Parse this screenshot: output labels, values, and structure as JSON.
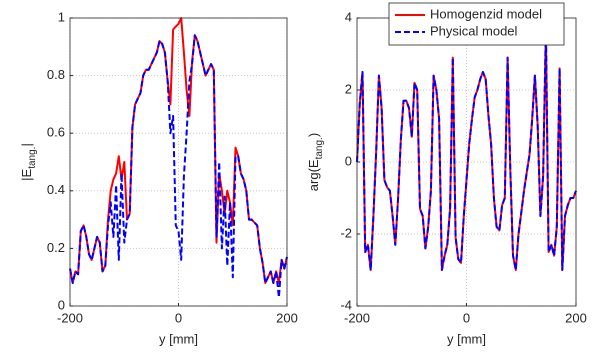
{
  "chart_data": [
    {
      "type": "line",
      "xlabel": "y [mm]",
      "ylabel_parts": [
        "|E",
        "tang.",
        "|"
      ],
      "x": [
        -200,
        -195,
        -190,
        -185,
        -180,
        -175,
        -170,
        -165,
        -160,
        -155,
        -150,
        -145,
        -140,
        -135,
        -130,
        -125,
        -120,
        -115,
        -110,
        -105,
        -100,
        -95,
        -90,
        -85,
        -80,
        -75,
        -70,
        -65,
        -60,
        -55,
        -50,
        -45,
        -40,
        -35,
        -30,
        -25,
        -20,
        -15,
        -10,
        -5,
        0,
        5,
        10,
        15,
        20,
        25,
        30,
        35,
        40,
        45,
        50,
        55,
        60,
        65,
        70,
        75,
        80,
        85,
        90,
        95,
        100,
        105,
        110,
        115,
        120,
        125,
        130,
        135,
        140,
        145,
        150,
        155,
        160,
        165,
        170,
        175,
        180,
        185,
        190,
        195,
        200
      ],
      "series": [
        {
          "color": "#ff0000",
          "linestyle": "solid",
          "values": [
            0.13,
            0.08,
            0.12,
            0.11,
            0.26,
            0.28,
            0.24,
            0.18,
            0.16,
            0.2,
            0.24,
            0.22,
            0.12,
            0.14,
            0.3,
            0.4,
            0.44,
            0.46,
            0.52,
            0.44,
            0.5,
            0.3,
            0.32,
            0.62,
            0.7,
            0.72,
            0.74,
            0.8,
            0.82,
            0.82,
            0.84,
            0.86,
            0.88,
            0.92,
            0.91,
            0.88,
            0.78,
            0.7,
            0.96,
            0.97,
            0.98,
            1.0,
            0.88,
            0.75,
            0.66,
            0.85,
            0.94,
            0.92,
            0.88,
            0.84,
            0.8,
            0.82,
            0.84,
            0.82,
            0.22,
            0.46,
            0.4,
            0.32,
            0.4,
            0.36,
            0.28,
            0.55,
            0.52,
            0.46,
            0.44,
            0.4,
            0.3,
            0.3,
            0.29,
            0.28,
            0.2,
            0.15,
            0.08,
            0.1,
            0.12,
            0.08,
            0.12,
            0.08,
            0.16,
            0.13,
            0.17
          ]
        },
        {
          "color": "#0000ff",
          "linestyle": "dashed",
          "values": [
            0.13,
            0.08,
            0.12,
            0.11,
            0.26,
            0.28,
            0.24,
            0.18,
            0.16,
            0.2,
            0.24,
            0.22,
            0.12,
            0.14,
            0.28,
            0.36,
            0.24,
            0.42,
            0.16,
            0.46,
            0.22,
            0.3,
            0.32,
            0.62,
            0.7,
            0.72,
            0.74,
            0.8,
            0.82,
            0.82,
            0.84,
            0.86,
            0.88,
            0.92,
            0.91,
            0.88,
            0.78,
            0.6,
            0.66,
            0.28,
            0.26,
            0.16,
            0.45,
            0.6,
            0.78,
            0.84,
            0.94,
            0.92,
            0.88,
            0.84,
            0.8,
            0.82,
            0.84,
            0.82,
            0.24,
            0.5,
            0.2,
            0.38,
            0.14,
            0.36,
            0.1,
            0.52,
            0.52,
            0.46,
            0.44,
            0.4,
            0.3,
            0.3,
            0.29,
            0.28,
            0.2,
            0.15,
            0.08,
            0.1,
            0.12,
            0.08,
            0.12,
            0.03,
            0.16,
            0.13,
            0.17
          ]
        }
      ],
      "xlim": [
        -200,
        200
      ],
      "xticks": [
        -200,
        0,
        200
      ],
      "ylim": [
        0,
        1
      ],
      "yticks": [
        0,
        0.2,
        0.4,
        0.6,
        0.8,
        1
      ],
      "grid": true
    },
    {
      "type": "line",
      "xlabel": "y [mm]",
      "ylabel_parts": [
        "arg(E",
        "tang.",
        ")"
      ],
      "x": [
        -200,
        -195,
        -190,
        -185,
        -180,
        -175,
        -170,
        -165,
        -160,
        -155,
        -150,
        -145,
        -140,
        -135,
        -130,
        -125,
        -120,
        -115,
        -110,
        -105,
        -100,
        -95,
        -90,
        -85,
        -80,
        -75,
        -70,
        -65,
        -60,
        -55,
        -50,
        -45,
        -40,
        -35,
        -30,
        -25,
        -20,
        -15,
        -10,
        -5,
        0,
        5,
        10,
        15,
        20,
        25,
        30,
        35,
        40,
        45,
        50,
        55,
        60,
        65,
        70,
        75,
        80,
        85,
        90,
        95,
        100,
        105,
        110,
        115,
        120,
        125,
        130,
        135,
        140,
        145,
        150,
        155,
        160,
        165,
        170,
        175,
        180,
        185,
        190,
        195,
        200
      ],
      "series": [
        {
          "name": "Homogenzid model",
          "color": "#ff0000",
          "linestyle": "solid",
          "values": [
            0,
            1.6,
            2.5,
            -2.5,
            -2.3,
            -3.0,
            -1.5,
            0.3,
            2.4,
            1.5,
            -0.5,
            -0.7,
            -0.8,
            -1.5,
            -2.3,
            -1.0,
            0.6,
            1.7,
            1.7,
            1.5,
            0.7,
            2.2,
            2.0,
            -1.3,
            -1.5,
            -2.4,
            -1.8,
            -0.8,
            2.4,
            2.0,
            1.2,
            -3.0,
            -2.6,
            -2.3,
            -1.3,
            2.9,
            -2.1,
            -2.7,
            -2.8,
            -1.5,
            -0.5,
            0.5,
            1.2,
            1.8,
            2.0,
            2.3,
            2.5,
            2.3,
            1.3,
            0.5,
            -1.0,
            -1.8,
            -1.9,
            -1.2,
            -1.0,
            2.9,
            -0.2,
            -2.6,
            -3.0,
            -2.0,
            -1.4,
            -0.8,
            -0.3,
            0.2,
            1.2,
            2.4,
            1.0,
            -1.5,
            -0.4,
            3.7,
            -2.5,
            -2.3,
            -2.6,
            -1.8,
            2.6,
            -3.0,
            -1.5,
            -1.2,
            -1.0,
            -1.0,
            -0.8
          ]
        },
        {
          "name": "Physical model",
          "color": "#0000ff",
          "linestyle": "dashed",
          "values": [
            0,
            1.6,
            2.5,
            -2.5,
            -2.3,
            -3.0,
            -1.5,
            0.3,
            2.4,
            1.5,
            -0.5,
            -0.7,
            -0.8,
            -1.5,
            -2.3,
            -1.0,
            0.6,
            1.7,
            1.7,
            1.5,
            0.7,
            2.2,
            2.0,
            -1.3,
            -1.5,
            -2.4,
            -1.8,
            -0.8,
            2.4,
            2.0,
            1.2,
            -3.0,
            -2.6,
            -2.3,
            -1.3,
            2.9,
            -2.1,
            -2.7,
            -2.8,
            -1.5,
            -0.5,
            0.5,
            1.2,
            1.8,
            2.0,
            2.3,
            2.5,
            2.3,
            1.3,
            0.5,
            -1.0,
            -1.8,
            -1.9,
            -1.2,
            -1.0,
            2.9,
            -0.2,
            -2.6,
            -3.0,
            -2.0,
            -1.4,
            -0.8,
            -0.3,
            0.2,
            1.2,
            2.4,
            1.0,
            -1.5,
            -0.4,
            3.7,
            -2.5,
            -2.3,
            -2.6,
            -1.8,
            2.6,
            -3.0,
            -1.5,
            -1.2,
            -1.0,
            -1.0,
            -0.8
          ]
        }
      ],
      "xlim": [
        -200,
        200
      ],
      "xticks": [
        -200,
        0,
        200
      ],
      "ylim": [
        -4,
        4
      ],
      "yticks": [
        -4,
        -2,
        0,
        2,
        4
      ],
      "grid": true,
      "legend": "top"
    }
  ]
}
